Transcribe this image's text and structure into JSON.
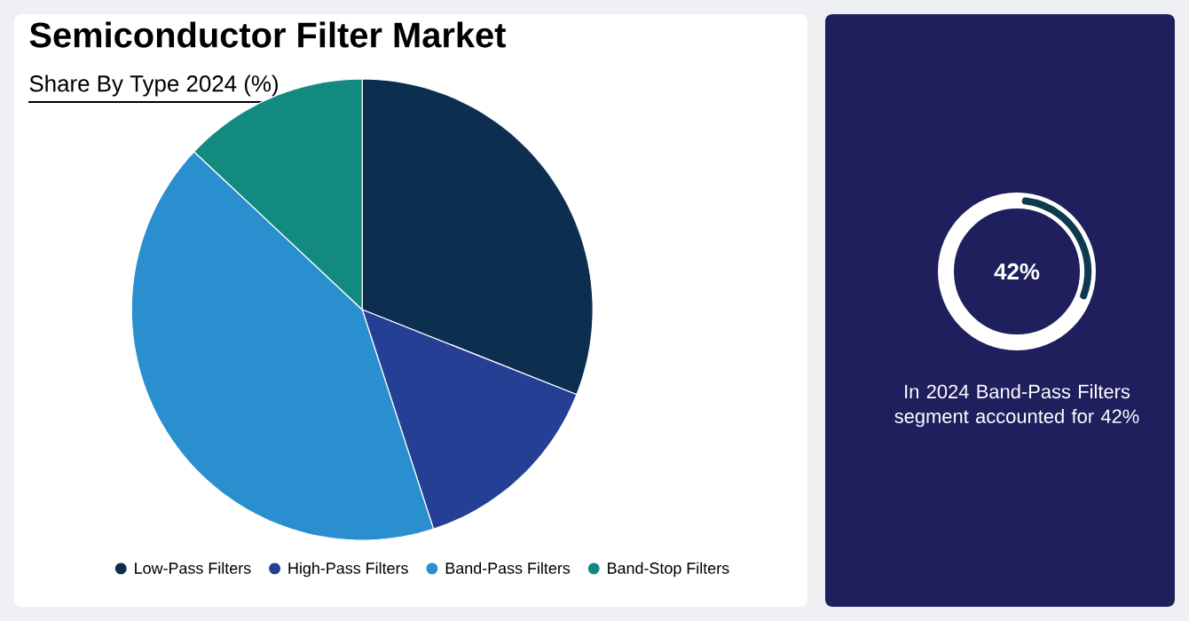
{
  "chart_data": [
    {
      "type": "pie",
      "title": "Semiconductor Filter Market",
      "subtitle": "Share By Type 2024 (%)",
      "categories": [
        "Low-Pass Filters",
        "High-Pass Filters",
        "Band-Pass Filters",
        "Band-Stop Filters"
      ],
      "values": [
        31,
        14,
        42,
        13
      ],
      "colors": [
        "#0d2f4f",
        "#253f94",
        "#2a8fce",
        "#138a80"
      ],
      "legend": "bottom"
    },
    {
      "type": "other",
      "annotations": [
        "42%",
        "In 2024 Band-Pass Filters segment accounted for 42%"
      ]
    }
  ]
}
